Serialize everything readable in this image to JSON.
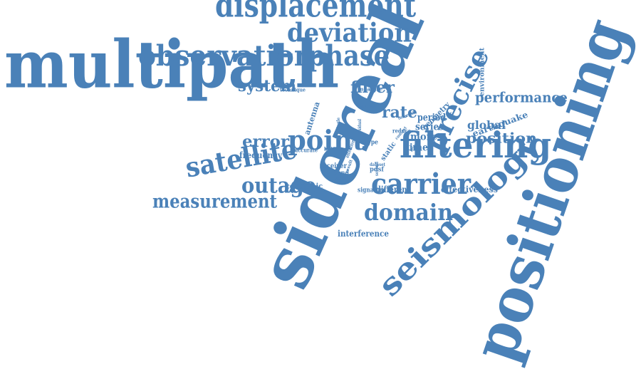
{
  "colors": {
    "word": "#4a81b8",
    "background": "#ffffff"
  },
  "words": [
    {
      "id": "multipath",
      "text": "multipath"
    },
    {
      "id": "sidereal",
      "text": "sidereal"
    },
    {
      "id": "positioning",
      "text": "positioning"
    },
    {
      "id": "filtering",
      "text": "filtering"
    },
    {
      "id": "displacement",
      "text": "displacement"
    },
    {
      "id": "observation",
      "text": "observation"
    },
    {
      "id": "phase",
      "text": "phase"
    },
    {
      "id": "deviation",
      "text": "deviation"
    },
    {
      "id": "precise",
      "text": "precise"
    },
    {
      "id": "seismology",
      "text": "seismology"
    },
    {
      "id": "satellite",
      "text": "satellite"
    },
    {
      "id": "carrier",
      "text": "carrier"
    },
    {
      "id": "domain",
      "text": "domain"
    },
    {
      "id": "point",
      "text": "point"
    },
    {
      "id": "outage",
      "text": "outage"
    },
    {
      "id": "measurement",
      "text": "measurement"
    },
    {
      "id": "performance",
      "text": "performance"
    },
    {
      "id": "position",
      "text": "position"
    },
    {
      "id": "system",
      "text": "system"
    },
    {
      "id": "filter",
      "text": "filter"
    },
    {
      "id": "error",
      "text": "error"
    },
    {
      "id": "rate",
      "text": "rate"
    },
    {
      "id": "global",
      "text": "global"
    },
    {
      "id": "earthquake",
      "text": "earthquake"
    },
    {
      "id": "period",
      "text": "period"
    },
    {
      "id": "series",
      "text": "series"
    },
    {
      "id": "more",
      "text": "more"
    },
    {
      "id": "time",
      "text": "time"
    },
    {
      "id": "frequency",
      "text": "frequency"
    },
    {
      "id": "effectiveness",
      "text": "effectiveness"
    },
    {
      "id": "interference",
      "text": "interference"
    },
    {
      "id": "different",
      "text": "different"
    },
    {
      "id": "coseismic",
      "text": "coseismic"
    },
    {
      "id": "antenna",
      "text": "antenna"
    },
    {
      "id": "geometry",
      "text": "geometry"
    },
    {
      "id": "environment",
      "text": "environment"
    },
    {
      "id": "receiver",
      "text": "receiver"
    },
    {
      "id": "ground",
      "text": "ground"
    },
    {
      "id": "signature",
      "text": "signature"
    },
    {
      "id": "technique",
      "text": "technique"
    },
    {
      "id": "measure",
      "text": "measure"
    },
    {
      "id": "warning",
      "text": "warning"
    },
    {
      "id": "reduce",
      "text": "reduce"
    },
    {
      "id": "accurate",
      "text": "accurate"
    },
    {
      "id": "better",
      "text": "better"
    },
    {
      "id": "interval",
      "text": "interval"
    },
    {
      "id": "reflector",
      "text": "reflector"
    },
    {
      "id": "static",
      "text": "static"
    },
    {
      "id": "type",
      "text": "type"
    },
    {
      "id": "pdsf",
      "text": "pdsf"
    },
    {
      "id": "station",
      "text": "station"
    },
    {
      "id": "second",
      "text": "second"
    },
    {
      "id": "dataset",
      "text": "dataset"
    },
    {
      "id": "context",
      "text": "context"
    },
    {
      "id": "length",
      "text": "length"
    },
    {
      "id": "result",
      "text": "result"
    },
    {
      "id": "effective",
      "text": "effective"
    },
    {
      "id": "residual",
      "text": "residual"
    },
    {
      "id": "single",
      "text": "single"
    }
  ]
}
